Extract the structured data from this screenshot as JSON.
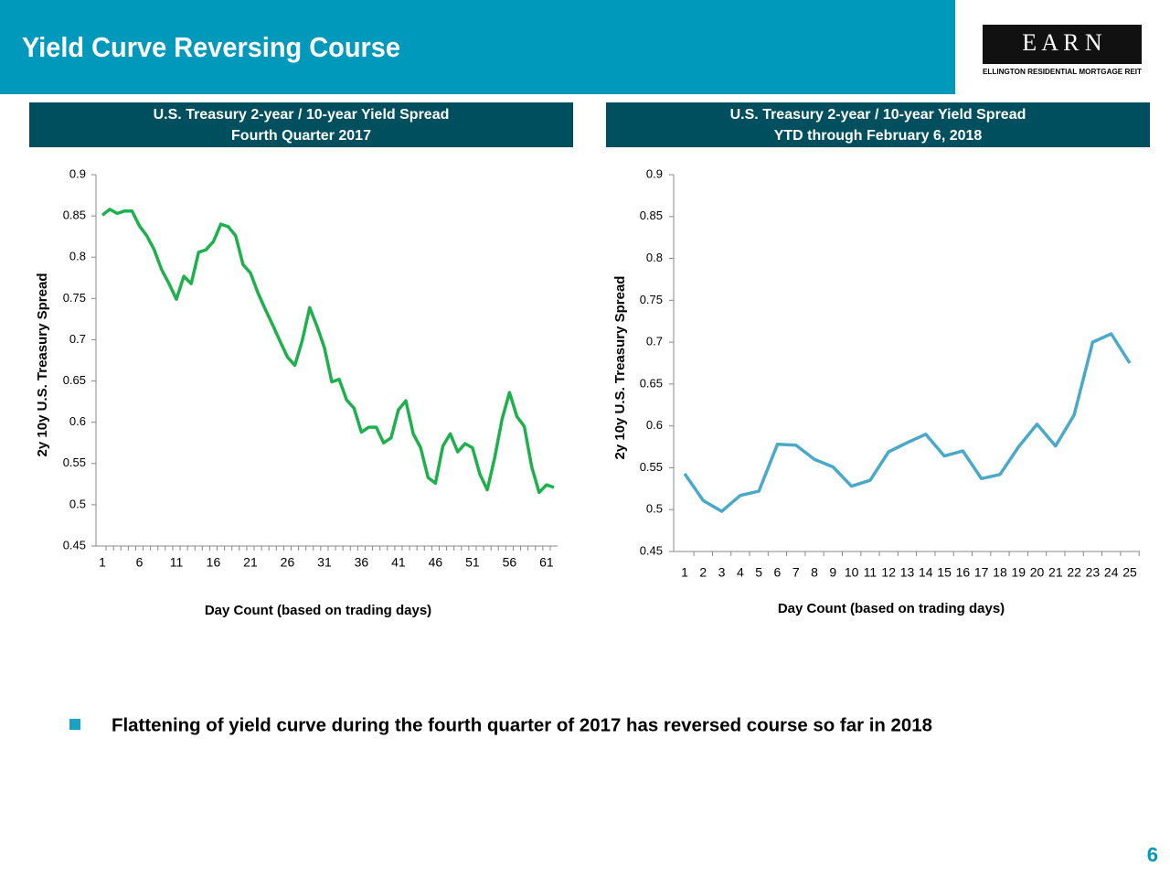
{
  "header": {
    "title": "Yield Curve Reversing Course",
    "logo": "E A R N",
    "logo_caption": "ELLINGTON RESIDENTIAL MORTGAGE REIT"
  },
  "chart_data": [
    {
      "type": "line",
      "title": "U.S. Treasury 2-year / 10-year Yield Spread",
      "subtitle": "Fourth Quarter 2017",
      "x_label": "Day Count (based on trading days)",
      "y_label": "2y 10y U.S. Treasury Spread",
      "categories": [
        1,
        null,
        null,
        null,
        null,
        6,
        null,
        null,
        null,
        null,
        11,
        null,
        null,
        null,
        null,
        16,
        null,
        null,
        null,
        null,
        21,
        null,
        null,
        null,
        null,
        26,
        null,
        null,
        null,
        null,
        31,
        null,
        null,
        null,
        null,
        36,
        null,
        null,
        null,
        null,
        41,
        null,
        null,
        null,
        null,
        46,
        null,
        null,
        null,
        null,
        51,
        null,
        null,
        null,
        null,
        56,
        null,
        null,
        null,
        null,
        61,
        null
      ],
      "series": [
        {
          "name": "Spread",
          "color": "#1fb04e",
          "values": [
            0.851,
            0.858,
            0.853,
            0.856,
            0.856,
            0.838,
            0.826,
            0.809,
            0.785,
            0.768,
            0.749,
            0.777,
            0.768,
            0.806,
            0.809,
            0.819,
            0.84,
            0.837,
            0.826,
            0.791,
            0.781,
            0.757,
            0.737,
            0.718,
            0.698,
            0.679,
            0.669,
            0.699,
            0.739,
            0.716,
            0.69,
            0.649,
            0.652,
            0.627,
            0.617,
            0.588,
            0.594,
            0.594,
            0.575,
            0.581,
            0.615,
            0.626,
            0.586,
            0.569,
            0.533,
            0.526,
            0.571,
            0.586,
            0.564,
            0.574,
            0.569,
            0.537,
            0.518,
            0.557,
            0.604,
            0.636,
            0.607,
            0.595,
            0.546,
            0.515,
            0.524,
            0.521
          ]
        }
      ],
      "ylim": [
        0.45,
        0.9
      ],
      "yticks": [
        0.45,
        0.5,
        0.55,
        0.6,
        0.65,
        0.7,
        0.75,
        0.8,
        0.85,
        0.9
      ],
      "grid": false
    },
    {
      "type": "line",
      "title": "U.S. Treasury 2-year / 10-year Yield Spread",
      "subtitle": "YTD through February 6, 2018",
      "x_label": "Day Count (based on trading days)",
      "y_label": "2y 10y U.S. Treasury Spread",
      "categories": [
        1,
        2,
        3,
        4,
        5,
        6,
        7,
        8,
        9,
        10,
        11,
        12,
        13,
        14,
        15,
        16,
        17,
        18,
        19,
        20,
        21,
        22,
        23,
        24,
        25
      ],
      "series": [
        {
          "name": "Spread",
          "color": "#4aa9c9",
          "values": [
            0.543,
            0.511,
            0.498,
            0.517,
            0.522,
            0.578,
            0.577,
            0.56,
            0.551,
            0.528,
            0.535,
            0.569,
            0.58,
            0.59,
            0.564,
            0.57,
            0.537,
            0.542,
            0.575,
            0.602,
            0.576,
            0.613,
            0.7,
            0.71,
            0.675
          ]
        }
      ],
      "ylim": [
        0.45,
        0.9
      ],
      "yticks": [
        0.45,
        0.5,
        0.55,
        0.6,
        0.65,
        0.7,
        0.75,
        0.8,
        0.85,
        0.9
      ],
      "grid": false
    }
  ],
  "bullets": [
    "Flattening of yield curve during the fourth quarter of 2017 has reversed course so far in 2018"
  ],
  "page_number": "6"
}
